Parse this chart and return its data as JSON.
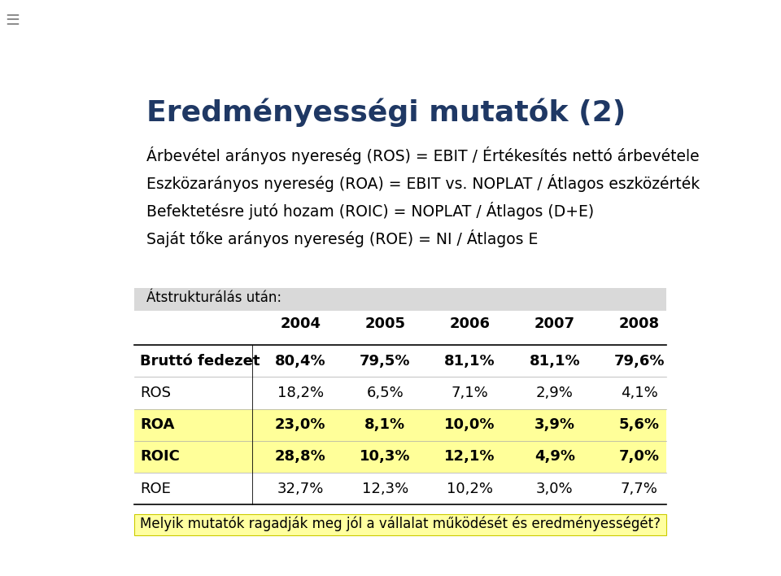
{
  "title": "Eredményességi mutatók (2)",
  "title_color": "#1F3864",
  "title_fontsize": 26,
  "body_lines": [
    "Árbevétel arányos nyereség (ROS) = EBIT / Értékesítés nettó árbevétele",
    "Eszközarányos nyereség (ROA) = EBIT vs. NOPLAT / Átlagos eszközérték",
    "Befektetésre jutó hozam (ROIC) = NOPLAT / Átlagos (D+E)",
    "Saját tőke arányos nyereség (ROE) = NI / Átlagos E"
  ],
  "body_fontsize": 13.5,
  "body_color": "#000000",
  "section_label": "Átstrukturálás után:",
  "section_bg": "#D9D9D9",
  "section_fontsize": 12,
  "years": [
    "2004",
    "2005",
    "2006",
    "2007",
    "2008"
  ],
  "rows": [
    {
      "label": "Bruttó fedezet",
      "values": [
        "80,4%",
        "79,5%",
        "81,1%",
        "81,1%",
        "79,6%"
      ],
      "bold": true,
      "highlight": false
    },
    {
      "label": "ROS",
      "values": [
        "18,2%",
        "6,5%",
        "7,1%",
        "2,9%",
        "4,1%"
      ],
      "bold": false,
      "highlight": false
    },
    {
      "label": "ROA",
      "values": [
        "23,0%",
        "8,1%",
        "10,0%",
        "3,9%",
        "5,6%"
      ],
      "bold": true,
      "highlight": true
    },
    {
      "label": "ROIC",
      "values": [
        "28,8%",
        "10,3%",
        "12,1%",
        "4,9%",
        "7,0%"
      ],
      "bold": true,
      "highlight": true
    },
    {
      "label": "ROE",
      "values": [
        "32,7%",
        "12,3%",
        "10,2%",
        "3,0%",
        "7,7%"
      ],
      "bold": false,
      "highlight": false
    }
  ],
  "highlight_color": "#FFFF99",
  "footer_text": "Melyik mutatók ragadják meg jól a vállalat működését és eredményességét?",
  "footer_bg": "#FFFFA0",
  "footer_fontsize": 12,
  "bg_color": "#FFFFFF",
  "table_header_fontsize": 13,
  "table_data_fontsize": 13
}
